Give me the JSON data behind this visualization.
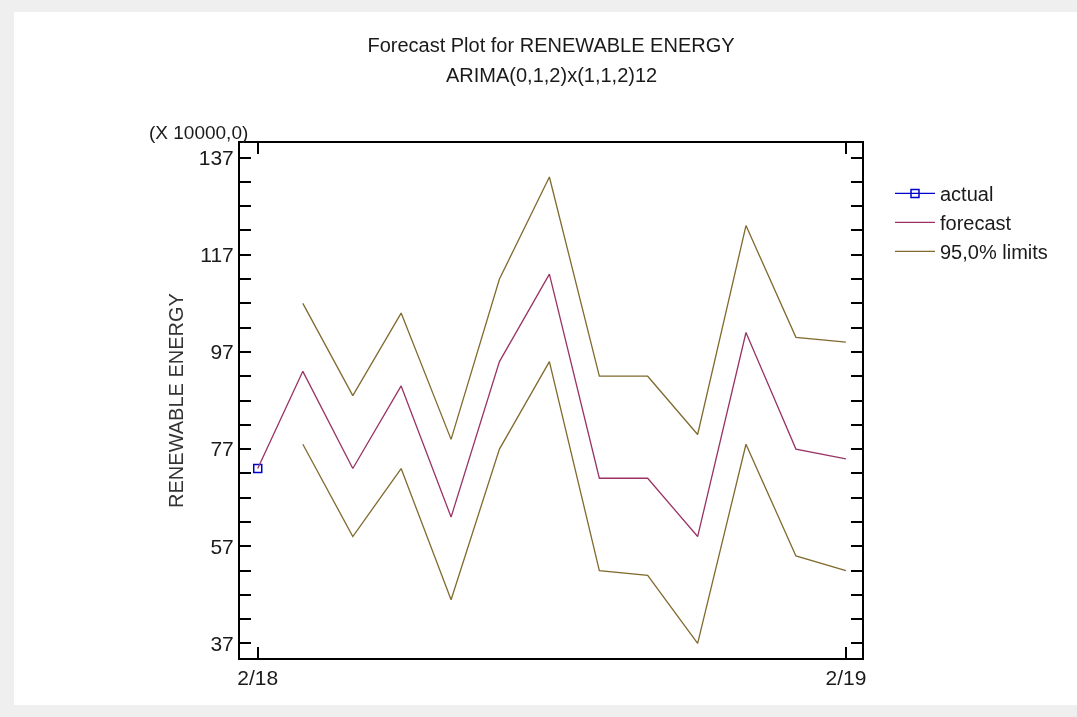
{
  "chart_data": {
    "type": "line",
    "title": "Forecast Plot for RENEWABLE ENERGY",
    "subtitle": "ARIMA(0,1,2)x(1,1,2)12",
    "ylabel": "RENEWABLE ENERGY",
    "annotations": [
      "(X 10000,0)"
    ],
    "xlim": [
      "2018-01-21",
      "2019-02-11"
    ],
    "xticks": [
      {
        "value": "2018-02",
        "label": "2/18"
      },
      {
        "value": "2019-02",
        "label": "2/19"
      }
    ],
    "ylim": [
      34,
      140
    ],
    "yticks": [
      37,
      {
        "value": 42,
        "label": null
      },
      {
        "value": 47,
        "label": null
      },
      {
        "value": 52,
        "label": null
      },
      57,
      {
        "value": 62,
        "label": null
      },
      {
        "value": 67,
        "label": null
      },
      {
        "value": 72,
        "label": null
      },
      77,
      {
        "value": 82,
        "label": null
      },
      {
        "value": 87,
        "label": null
      },
      {
        "value": 92,
        "label": null
      },
      97,
      {
        "value": 102,
        "label": null
      },
      {
        "value": 107,
        "label": null
      },
      {
        "value": 112,
        "label": null
      },
      117,
      {
        "value": 122,
        "label": null
      },
      {
        "value": 127,
        "label": null
      },
      {
        "value": 132,
        "label": null
      },
      137
    ],
    "grid": false,
    "legend": "top right",
    "series": [
      {
        "name": "actual",
        "color": "#0000cc",
        "marker": "square",
        "x": [
          "2018-02"
        ],
        "values": [
          73
        ]
      },
      {
        "name": "forecast",
        "color": "#993366",
        "x": [
          "2018-02",
          "2018-03",
          "2018-04",
          "2018-05",
          "2018-06",
          "2018-07",
          "2018-08",
          "2018-09",
          "2018-10",
          "2018-11",
          "2018-12",
          "2019-01",
          "2019-02"
        ],
        "values": [
          73,
          93,
          73,
          90,
          63,
          95,
          113,
          71,
          71,
          59,
          101,
          77,
          75
        ]
      },
      {
        "name": "95,0% limits",
        "color": "#806a2e",
        "x": [
          "2018-03",
          "2018-04",
          "2018-05",
          "2018-06",
          "2018-07",
          "2018-08",
          "2018-09",
          "2018-10",
          "2018-11",
          "2018-12",
          "2019-01",
          "2019-02"
        ],
        "values": [
          107,
          88,
          105,
          79,
          112,
          133,
          92,
          92,
          80,
          123,
          100,
          99
        ]
      },
      {
        "color": "#806a2e",
        "x": [
          "2018-03",
          "2018-04",
          "2018-05",
          "2018-06",
          "2018-07",
          "2018-08",
          "2018-09",
          "2018-10",
          "2018-11",
          "2018-12",
          "2019-01",
          "2019-02"
        ],
        "values": [
          78,
          59,
          73,
          46,
          77,
          95,
          52,
          51,
          37,
          78,
          55,
          52
        ]
      }
    ]
  }
}
